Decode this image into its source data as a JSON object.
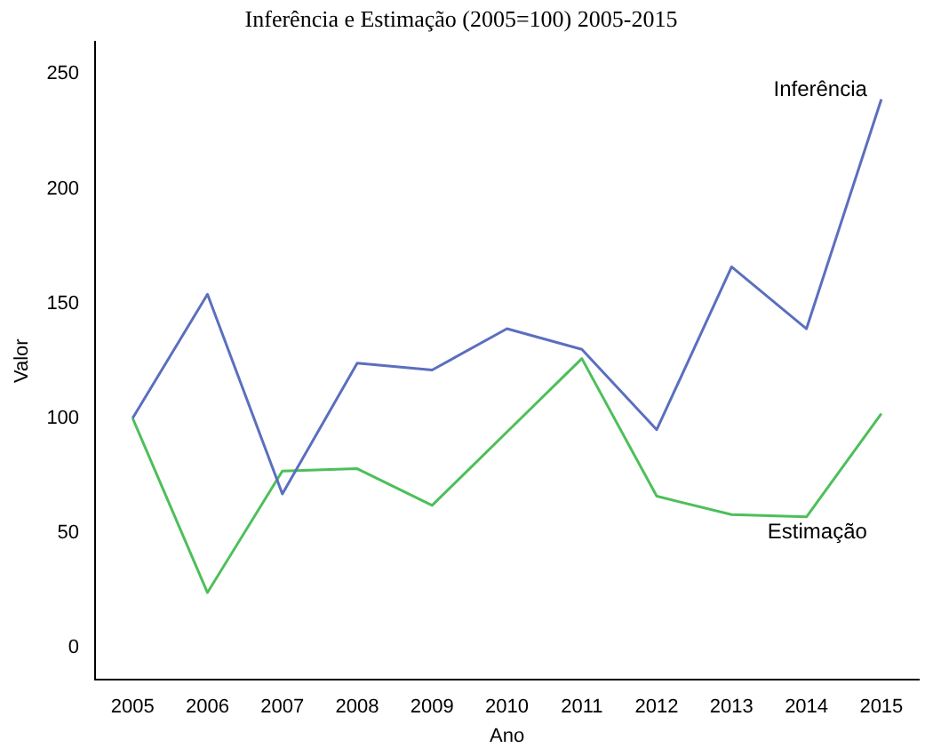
{
  "chart_data": {
    "type": "line",
    "title": "Inferência e Estimação (2005=100) 2005-2015",
    "xlabel": "Ano",
    "ylabel": "Valor",
    "categories": [
      "2005",
      "2006",
      "2007",
      "2008",
      "2009",
      "2010",
      "2011",
      "2012",
      "2013",
      "2014",
      "2015"
    ],
    "series": [
      {
        "name": "Inferência",
        "color": "#5b6fbf",
        "values": [
          100,
          154,
          67,
          124,
          121,
          139,
          130,
          95,
          166,
          139,
          239
        ]
      },
      {
        "name": "Estimação",
        "color": "#4dbf5a",
        "values": [
          100,
          24,
          77,
          78,
          62,
          94,
          126,
          66,
          58,
          57,
          102
        ]
      }
    ],
    "ylim": [
      -14,
      264
    ],
    "yticks": [
      0,
      50,
      100,
      150,
      200,
      250
    ],
    "grid": false,
    "legend": false,
    "marker": "none",
    "line_style": "solid"
  }
}
